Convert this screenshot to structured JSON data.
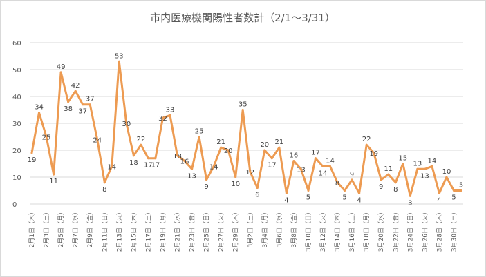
{
  "chart_data": {
    "type": "line",
    "title": "市内医療機関陽性者数計（2/1～3/31）",
    "xlabel": "",
    "ylabel": "",
    "ylim": [
      0,
      60
    ],
    "yticks": [
      0,
      10,
      20,
      30,
      40,
      50,
      60
    ],
    "grid": true,
    "legend": "none",
    "line_color": "#ED9B52",
    "x": [
      "2/1",
      "2/2",
      "2/3",
      "2/4",
      "2/5",
      "2/6",
      "2/7",
      "2/8",
      "2/9",
      "2/10",
      "2/11",
      "2/12",
      "2/13",
      "2/14",
      "2/15",
      "2/16",
      "2/17",
      "2/18",
      "2/19",
      "2/20",
      "2/21",
      "2/22",
      "2/23",
      "2/24",
      "2/25",
      "2/26",
      "2/27",
      "2/28",
      "2/29",
      "3/1",
      "3/2",
      "3/3",
      "3/4",
      "3/5",
      "3/6",
      "3/7",
      "3/8",
      "3/9",
      "3/10",
      "3/11",
      "3/12",
      "3/13",
      "3/14",
      "3/15",
      "3/16",
      "3/17",
      "3/18",
      "3/19",
      "3/20",
      "3/21",
      "3/22",
      "3/23",
      "3/24",
      "3/25",
      "3/26",
      "3/27",
      "3/28",
      "3/29",
      "3/30",
      "3/31"
    ],
    "tick_labels": [
      "2月1日（木）",
      "2月3日（土）",
      "2月5日（月）",
      "2月7日（水）",
      "2月9日（金）",
      "2月11日（日）",
      "2月13日（火）",
      "2月15日（木）",
      "2月17日（土）",
      "2月19日（月）",
      "2月21日（水）",
      "2月23日（金）",
      "2月25日（日）",
      "2月27日（火）",
      "2月29日（木）",
      "3月2日（土）",
      "3月4日（月）",
      "3月6日（水）",
      "3月8日（金）",
      "3月10日（日）",
      "3月12日（火）",
      "3月14日（木）",
      "3月16日（土）",
      "3月18日（月）",
      "3月20日（水）",
      "3月22日（金）",
      "3月24日（日）",
      "3月26日（火）",
      "3月28日（木）",
      "3月30日（土）"
    ],
    "values": [
      19,
      34,
      25,
      11,
      49,
      38,
      42,
      37,
      37,
      24,
      8,
      14,
      53,
      30,
      18,
      22,
      17,
      17,
      32,
      33,
      18,
      16,
      13,
      25,
      9,
      14,
      21,
      20,
      10,
      35,
      12,
      6,
      20,
      17,
      21,
      4,
      16,
      13,
      5,
      17,
      14,
      14,
      8,
      5,
      9,
      4,
      22,
      19,
      9,
      11,
      8,
      15,
      3,
      13,
      13,
      14,
      4,
      10,
      5,
      5
    ]
  }
}
